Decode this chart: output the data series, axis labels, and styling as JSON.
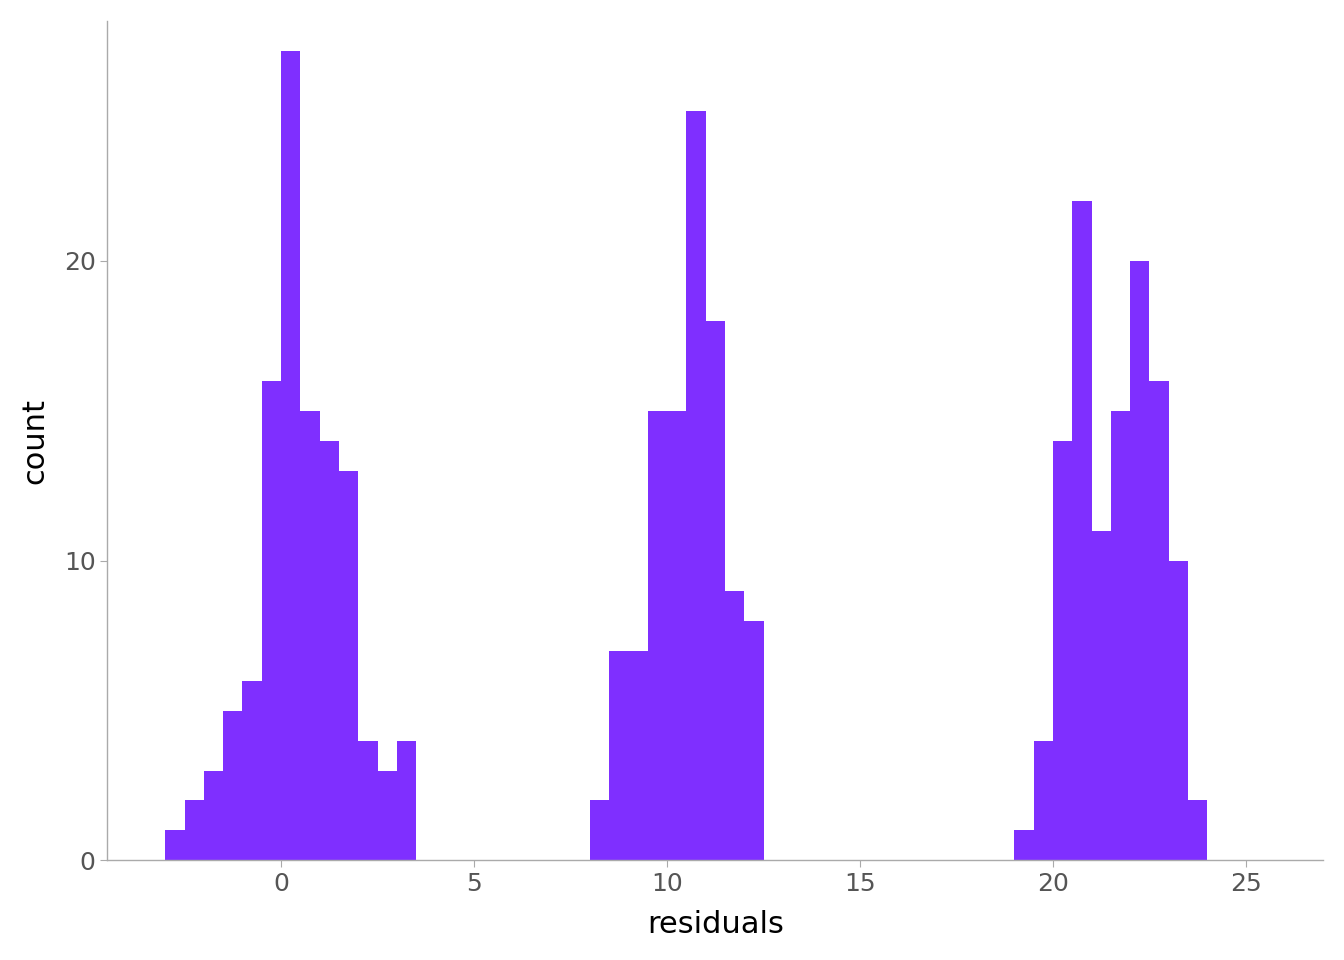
{
  "xlabel": "residuals",
  "ylabel": "count",
  "bar_color": "#7f2fff",
  "background_color": "#ffffff",
  "xlim": [
    -4.5,
    27
  ],
  "ylim": [
    0,
    28
  ],
  "yticks": [
    0,
    10,
    20
  ],
  "xticks": [
    0,
    5,
    10,
    15,
    20,
    25
  ],
  "group1_bins": [
    -3.0,
    -2.5,
    -2.0,
    -1.5,
    -1.0,
    -0.5,
    0.0,
    0.5,
    1.0,
    1.5,
    2.0,
    2.5,
    3.0,
    3.5
  ],
  "group1_counts": [
    1,
    2,
    3,
    5,
    6,
    16,
    27,
    15,
    14,
    13,
    4,
    3,
    4,
    0
  ],
  "group2_bins": [
    8.0,
    8.5,
    9.0,
    9.5,
    10.0,
    10.5,
    11.0,
    11.5,
    12.0,
    12.5
  ],
  "group2_counts": [
    2,
    7,
    7,
    15,
    15,
    25,
    18,
    9,
    8,
    0
  ],
  "group3_bins": [
    19.0,
    19.5,
    20.0,
    20.5,
    21.0,
    21.5,
    22.0,
    22.5,
    23.0,
    23.5,
    24.0
  ],
  "group3_counts": [
    1,
    4,
    14,
    22,
    11,
    15,
    20,
    16,
    10,
    2,
    0
  ],
  "xlabel_fontsize": 22,
  "ylabel_fontsize": 22,
  "tick_fontsize": 18,
  "bin_width": 0.5
}
